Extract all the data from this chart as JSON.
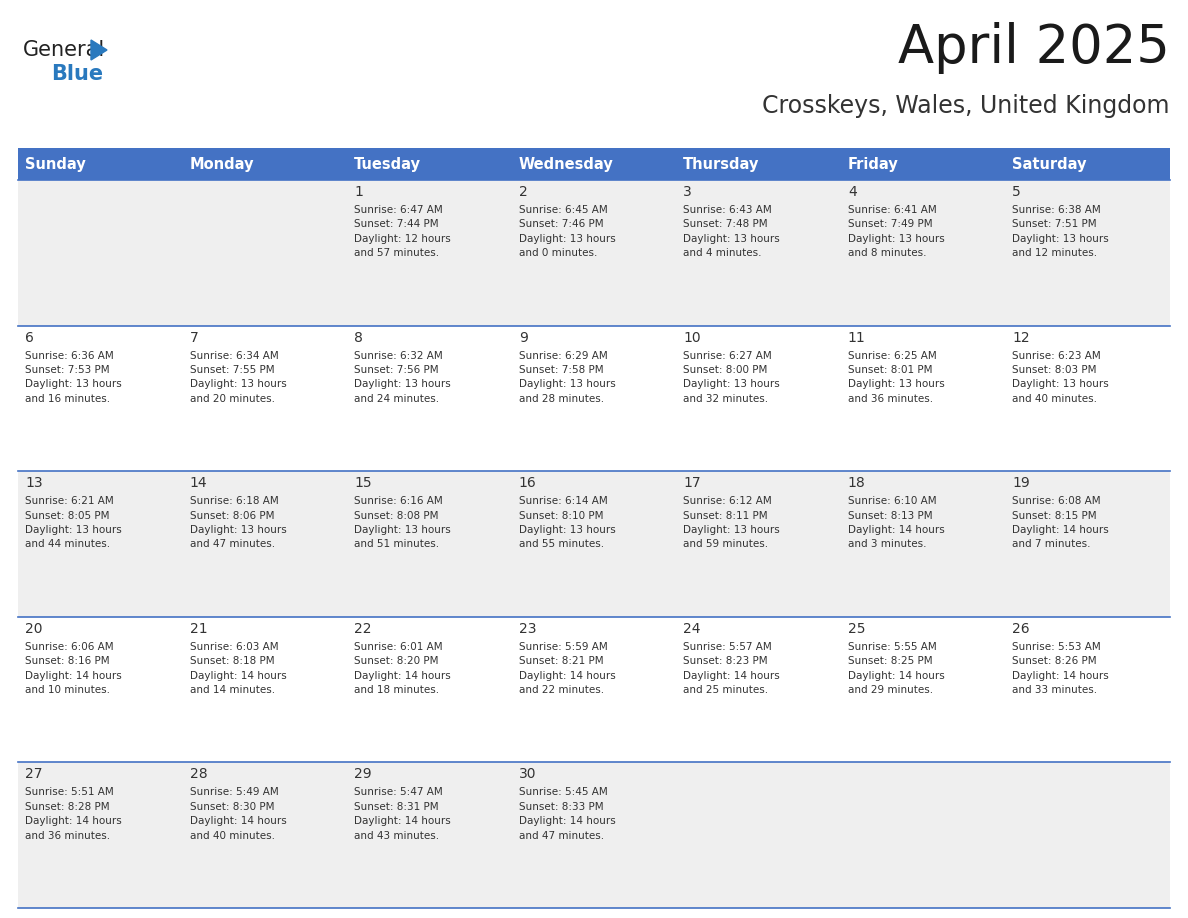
{
  "title": "April 2025",
  "subtitle": "Crosskeys, Wales, United Kingdom",
  "header_bg": "#4472C4",
  "header_text_color": "#FFFFFF",
  "header_font_size": 10.5,
  "days_of_week": [
    "Sunday",
    "Monday",
    "Tuesday",
    "Wednesday",
    "Thursday",
    "Friday",
    "Saturday"
  ],
  "title_font_size": 38,
  "subtitle_font_size": 17,
  "background_color": "#FFFFFF",
  "row_even_color": "#EFEFEF",
  "row_odd_color": "#FFFFFF",
  "cell_text_color": "#333333",
  "day_num_color": "#333333",
  "divider_color": "#4472C4",
  "logo_general_color": "#222222",
  "logo_blue_color": "#2979BE",
  "logo_triangle_color": "#2979BE",
  "weeks": [
    [
      {
        "day": null,
        "text": ""
      },
      {
        "day": null,
        "text": ""
      },
      {
        "day": 1,
        "text": "Sunrise: 6:47 AM\nSunset: 7:44 PM\nDaylight: 12 hours\nand 57 minutes."
      },
      {
        "day": 2,
        "text": "Sunrise: 6:45 AM\nSunset: 7:46 PM\nDaylight: 13 hours\nand 0 minutes."
      },
      {
        "day": 3,
        "text": "Sunrise: 6:43 AM\nSunset: 7:48 PM\nDaylight: 13 hours\nand 4 minutes."
      },
      {
        "day": 4,
        "text": "Sunrise: 6:41 AM\nSunset: 7:49 PM\nDaylight: 13 hours\nand 8 minutes."
      },
      {
        "day": 5,
        "text": "Sunrise: 6:38 AM\nSunset: 7:51 PM\nDaylight: 13 hours\nand 12 minutes."
      }
    ],
    [
      {
        "day": 6,
        "text": "Sunrise: 6:36 AM\nSunset: 7:53 PM\nDaylight: 13 hours\nand 16 minutes."
      },
      {
        "day": 7,
        "text": "Sunrise: 6:34 AM\nSunset: 7:55 PM\nDaylight: 13 hours\nand 20 minutes."
      },
      {
        "day": 8,
        "text": "Sunrise: 6:32 AM\nSunset: 7:56 PM\nDaylight: 13 hours\nand 24 minutes."
      },
      {
        "day": 9,
        "text": "Sunrise: 6:29 AM\nSunset: 7:58 PM\nDaylight: 13 hours\nand 28 minutes."
      },
      {
        "day": 10,
        "text": "Sunrise: 6:27 AM\nSunset: 8:00 PM\nDaylight: 13 hours\nand 32 minutes."
      },
      {
        "day": 11,
        "text": "Sunrise: 6:25 AM\nSunset: 8:01 PM\nDaylight: 13 hours\nand 36 minutes."
      },
      {
        "day": 12,
        "text": "Sunrise: 6:23 AM\nSunset: 8:03 PM\nDaylight: 13 hours\nand 40 minutes."
      }
    ],
    [
      {
        "day": 13,
        "text": "Sunrise: 6:21 AM\nSunset: 8:05 PM\nDaylight: 13 hours\nand 44 minutes."
      },
      {
        "day": 14,
        "text": "Sunrise: 6:18 AM\nSunset: 8:06 PM\nDaylight: 13 hours\nand 47 minutes."
      },
      {
        "day": 15,
        "text": "Sunrise: 6:16 AM\nSunset: 8:08 PM\nDaylight: 13 hours\nand 51 minutes."
      },
      {
        "day": 16,
        "text": "Sunrise: 6:14 AM\nSunset: 8:10 PM\nDaylight: 13 hours\nand 55 minutes."
      },
      {
        "day": 17,
        "text": "Sunrise: 6:12 AM\nSunset: 8:11 PM\nDaylight: 13 hours\nand 59 minutes."
      },
      {
        "day": 18,
        "text": "Sunrise: 6:10 AM\nSunset: 8:13 PM\nDaylight: 14 hours\nand 3 minutes."
      },
      {
        "day": 19,
        "text": "Sunrise: 6:08 AM\nSunset: 8:15 PM\nDaylight: 14 hours\nand 7 minutes."
      }
    ],
    [
      {
        "day": 20,
        "text": "Sunrise: 6:06 AM\nSunset: 8:16 PM\nDaylight: 14 hours\nand 10 minutes."
      },
      {
        "day": 21,
        "text": "Sunrise: 6:03 AM\nSunset: 8:18 PM\nDaylight: 14 hours\nand 14 minutes."
      },
      {
        "day": 22,
        "text": "Sunrise: 6:01 AM\nSunset: 8:20 PM\nDaylight: 14 hours\nand 18 minutes."
      },
      {
        "day": 23,
        "text": "Sunrise: 5:59 AM\nSunset: 8:21 PM\nDaylight: 14 hours\nand 22 minutes."
      },
      {
        "day": 24,
        "text": "Sunrise: 5:57 AM\nSunset: 8:23 PM\nDaylight: 14 hours\nand 25 minutes."
      },
      {
        "day": 25,
        "text": "Sunrise: 5:55 AM\nSunset: 8:25 PM\nDaylight: 14 hours\nand 29 minutes."
      },
      {
        "day": 26,
        "text": "Sunrise: 5:53 AM\nSunset: 8:26 PM\nDaylight: 14 hours\nand 33 minutes."
      }
    ],
    [
      {
        "day": 27,
        "text": "Sunrise: 5:51 AM\nSunset: 8:28 PM\nDaylight: 14 hours\nand 36 minutes."
      },
      {
        "day": 28,
        "text": "Sunrise: 5:49 AM\nSunset: 8:30 PM\nDaylight: 14 hours\nand 40 minutes."
      },
      {
        "day": 29,
        "text": "Sunrise: 5:47 AM\nSunset: 8:31 PM\nDaylight: 14 hours\nand 43 minutes."
      },
      {
        "day": 30,
        "text": "Sunrise: 5:45 AM\nSunset: 8:33 PM\nDaylight: 14 hours\nand 47 minutes."
      },
      {
        "day": null,
        "text": ""
      },
      {
        "day": null,
        "text": ""
      },
      {
        "day": null,
        "text": ""
      }
    ]
  ]
}
